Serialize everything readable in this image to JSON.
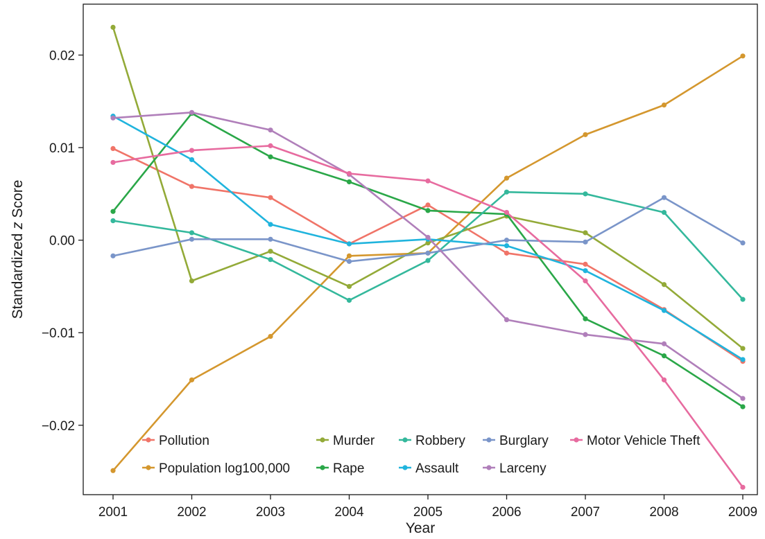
{
  "chart_data": {
    "type": "line",
    "title": "",
    "xlabel": "Year",
    "ylabel_prefix": "Standardized ",
    "ylabel_italic": "z",
    "ylabel_suffix": " Score",
    "x": [
      "2001",
      "2002",
      "2003",
      "2004",
      "2005",
      "2006",
      "2007",
      "2008",
      "2009"
    ],
    "ylim": [
      -0.0275,
      0.0255
    ],
    "yticks": [
      0.02,
      0.01,
      0.0,
      -0.01,
      -0.02
    ],
    "ytick_labels": [
      "0.02",
      "0.01",
      "0.00",
      "−0.01",
      "−0.02"
    ],
    "grid": false,
    "legend_position": "bottom-inside",
    "series": [
      {
        "name": "Pollution",
        "color": "#f07468",
        "values": [
          0.0099,
          0.0058,
          0.0046,
          -0.0004,
          0.0038,
          -0.0014,
          -0.0026,
          -0.0075,
          -0.0131
        ]
      },
      {
        "name": "Population log100,000",
        "color": "#d4972e",
        "values": [
          -0.0249,
          -0.0151,
          -0.0104,
          -0.0017,
          -0.0014,
          0.0067,
          0.0114,
          0.0146,
          0.0199
        ]
      },
      {
        "name": "Murder",
        "color": "#93aa38",
        "values": [
          0.023,
          -0.0044,
          -0.0012,
          -0.005,
          -0.0003,
          0.0026,
          0.0008,
          -0.0048,
          -0.0117
        ]
      },
      {
        "name": "Rape",
        "color": "#2aa748",
        "values": [
          0.0031,
          0.0137,
          0.009,
          0.0063,
          0.0032,
          0.0028,
          -0.0085,
          -0.0125,
          -0.018
        ]
      },
      {
        "name": "Robbery",
        "color": "#34b89c",
        "values": [
          0.0021,
          0.0008,
          -0.0021,
          -0.0065,
          -0.0022,
          0.0052,
          0.005,
          0.003,
          -0.0064
        ]
      },
      {
        "name": "Assault",
        "color": "#20b4dd",
        "values": [
          0.0134,
          0.0087,
          0.0017,
          -0.0004,
          0.0001,
          -0.0006,
          -0.0033,
          -0.0076,
          -0.0129
        ]
      },
      {
        "name": "Burglary",
        "color": "#7a95c9",
        "values": [
          -0.0017,
          0.0001,
          0.0001,
          -0.0023,
          -0.0014,
          0.0,
          -0.0002,
          0.0046,
          -0.0003
        ]
      },
      {
        "name": "Larceny",
        "color": "#b07fba",
        "values": [
          0.0132,
          0.0138,
          0.0119,
          0.0071,
          0.0003,
          -0.0086,
          -0.0102,
          -0.0112,
          -0.0171
        ]
      },
      {
        "name": "Motor Vehicle Theft",
        "color": "#e76b9f",
        "values": [
          0.0084,
          0.0097,
          0.0102,
          0.0072,
          0.0064,
          0.003,
          -0.0044,
          -0.0151,
          -0.0267
        ]
      }
    ]
  }
}
